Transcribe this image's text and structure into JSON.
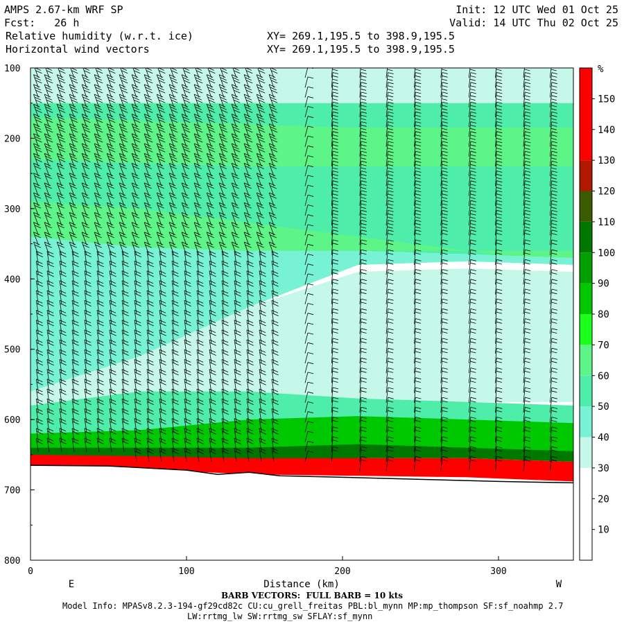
{
  "header": {
    "title": "AMPS 2.67-km WRF SP",
    "forecast": "Fcst:   26 h",
    "init": "Init: 12 UTC Wed 01 Oct 25",
    "valid": "Valid: 14 UTC Thu 02 Oct 25",
    "field1": "Relative humidity (w.r.t. ice)",
    "field2": "Horizontal wind vectors",
    "xy1": "XY= 269.1,195.5 to 398.9,195.5",
    "xy2": "XY= 269.1,195.5 to 398.9,195.5"
  },
  "footer": {
    "barb_note": "BARB VECTORS:  FULL BARB = 10 kts",
    "model_info": "Model Info: MPASv8.2.3-194-gf29cd82c CU:cu_grell_freitas PBL:bl_mynn MP:mp_thompson SF:sf_noahmp 2.7",
    "model_info2": "LW:rrtmg_lw SW:rrtmg_sw SFLAY:sf_mynn"
  },
  "chart_data": {
    "type": "heatmap",
    "xlabel": "Distance (km)",
    "ylabel": "",
    "xlim": [
      0,
      348
    ],
    "ylim": [
      800,
      100
    ],
    "x_ticks": [
      0,
      100,
      200,
      300
    ],
    "y_ticks": [
      100,
      200,
      300,
      400,
      500,
      600,
      700,
      800
    ],
    "x_end_labels": {
      "left": "E",
      "right": "W"
    },
    "colorbar": {
      "unit": "%",
      "tick_labels": [
        10,
        20,
        30,
        40,
        50,
        60,
        70,
        80,
        90,
        100,
        110,
        120,
        130,
        140,
        150
      ],
      "bins": [
        {
          "min": 0,
          "max": 30,
          "color": "#ffffff"
        },
        {
          "min": 30,
          "max": 40,
          "color": "#c6f8ea"
        },
        {
          "min": 40,
          "max": 50,
          "color": "#78f2d4"
        },
        {
          "min": 50,
          "max": 60,
          "color": "#4eedaa"
        },
        {
          "min": 60,
          "max": 70,
          "color": "#5df587"
        },
        {
          "min": 70,
          "max": 80,
          "color": "#1cff1c"
        },
        {
          "min": 80,
          "max": 90,
          "color": "#00c800"
        },
        {
          "min": 90,
          "max": 100,
          "color": "#00a000"
        },
        {
          "min": 100,
          "max": 110,
          "color": "#007800"
        },
        {
          "min": 110,
          "max": 120,
          "color": "#3c5a00"
        },
        {
          "min": 120,
          "max": 130,
          "color": "#b01800"
        },
        {
          "min": 130,
          "max": 160,
          "color": "#ff0000"
        }
      ]
    },
    "rh_layers": [
      {
        "name": "upper-band-30",
        "top": [
          100,
          100,
          100,
          100,
          100,
          100
        ],
        "bottom": [
          150,
          150,
          150,
          150,
          150,
          150
        ],
        "rh": 35
      },
      {
        "name": "upper-band-50",
        "top": [
          150,
          150,
          150,
          150,
          150,
          150
        ],
        "bottom": [
          230,
          230,
          230,
          230,
          230,
          230
        ],
        "rh": 55
      },
      {
        "name": "upper-band-60",
        "top": [
          170,
          175,
          180,
          185,
          185,
          185
        ],
        "bottom": [
          230,
          235,
          240,
          240,
          240,
          240
        ],
        "rh": 62
      },
      {
        "name": "mid-band-50",
        "top": [
          230,
          235,
          240,
          240,
          240,
          240
        ],
        "bottom": [
          340,
          355,
          360,
          360,
          365,
          370
        ],
        "rh": 55
      },
      {
        "name": "moist-wedge-60",
        "top": [
          290,
          300,
          320,
          340,
          360,
          380
        ],
        "bottom": [
          400,
          385,
          370,
          360,
          360,
          360
        ],
        "rh": 62
      },
      {
        "name": "mid-band-40",
        "top": [
          340,
          355,
          360,
          360,
          365,
          370
        ],
        "bottom": [
          560,
          510,
          440,
          380,
          375,
          380
        ],
        "rh": 45
      },
      {
        "name": "low-band-30",
        "top": [
          560,
          510,
          440,
          390,
          385,
          390
        ],
        "bottom": [
          600,
          590,
          580,
          580,
          575,
          575
        ],
        "rh": 35
      },
      {
        "name": "low-band-50",
        "top": [
          580,
          560,
          560,
          570,
          575,
          580
        ],
        "bottom": [
          630,
          625,
          620,
          615,
          615,
          615
        ],
        "rh": 55
      },
      {
        "name": "low-band-80",
        "top": [
          620,
          615,
          600,
          595,
          600,
          605
        ],
        "bottom": [
          655,
          655,
          650,
          645,
          645,
          650
        ],
        "rh": 85
      },
      {
        "name": "low-band-100",
        "top": [
          640,
          640,
          640,
          635,
          640,
          645
        ],
        "bottom": [
          660,
          665,
          660,
          655,
          655,
          660
        ],
        "rh": 105
      },
      {
        "name": "surface-120",
        "top": [
          650,
          652,
          655,
          655,
          655,
          660
        ],
        "bottom": [
          665,
          670,
          678,
          680,
          682,
          688
        ],
        "rh": 140
      }
    ],
    "layer_x": [
      0,
      70,
      140,
      210,
      280,
      348
    ],
    "terrain": {
      "x": [
        0,
        50,
        100,
        120,
        140,
        160,
        200,
        250,
        300,
        348
      ],
      "p": [
        665,
        666,
        672,
        678,
        675,
        680,
        682,
        685,
        688,
        690
      ]
    },
    "wind_barbs": {
      "columns_km": [
        5,
        12,
        20,
        28,
        36,
        44,
        52,
        60,
        68,
        76,
        84,
        92,
        100,
        108,
        116,
        124,
        132,
        140,
        148,
        156,
        176,
        193,
        211,
        228,
        246,
        263,
        281,
        298,
        316,
        333
      ],
      "level_spacing_hpa": 14
    }
  }
}
